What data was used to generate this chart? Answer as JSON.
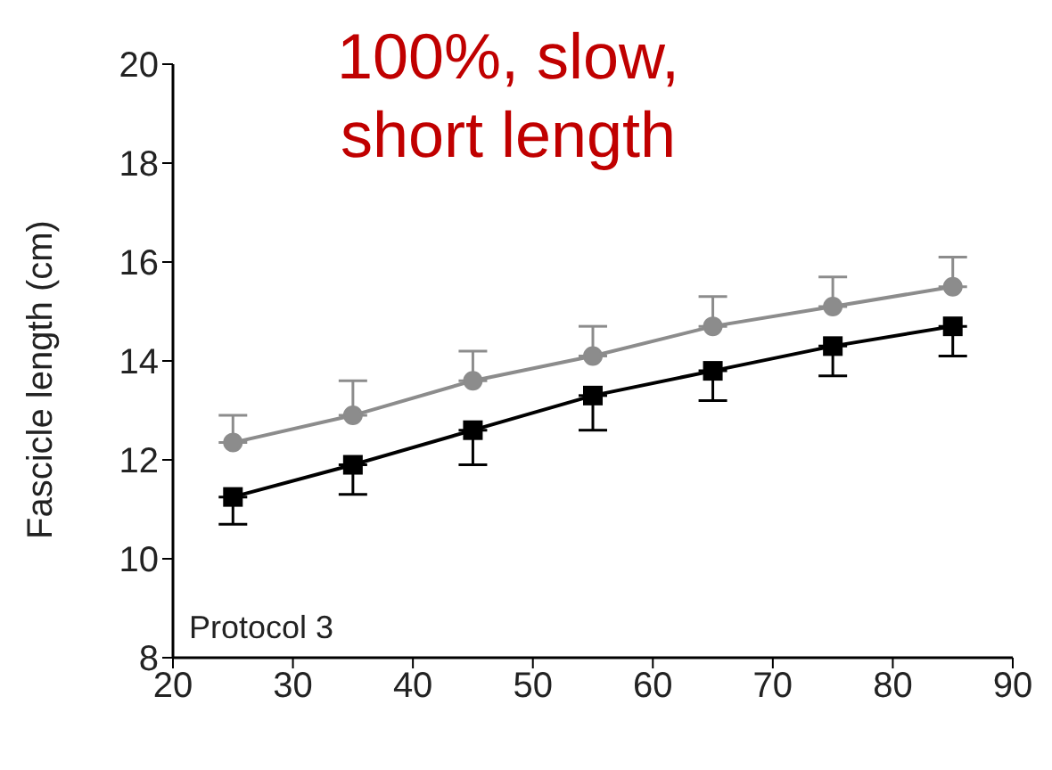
{
  "chart_data": {
    "type": "line",
    "title": "100%, slow, short length",
    "ylabel": "Fascicle length (cm)",
    "annotations": [
      "Protocol 3"
    ],
    "x": [
      25,
      35,
      45,
      55,
      65,
      75,
      85
    ],
    "series": [
      {
        "color": "#8c8c8c",
        "marker": "circle",
        "values": [
          12.35,
          12.9,
          13.6,
          14.1,
          14.7,
          15.1,
          15.5
        ],
        "errors": [
          [
            12.35,
            12.9
          ],
          [
            12.9,
            13.6
          ],
          [
            13.6,
            14.2
          ],
          [
            14.1,
            14.7
          ],
          [
            14.7,
            15.3
          ],
          [
            15.1,
            15.7
          ],
          [
            15.5,
            16.1
          ]
        ]
      },
      {
        "color": "#000000",
        "marker": "square",
        "values": [
          11.25,
          11.9,
          12.6,
          13.3,
          13.8,
          14.3,
          14.7
        ],
        "errors": [
          [
            10.7,
            11.25
          ],
          [
            11.3,
            11.9
          ],
          [
            11.9,
            12.6
          ],
          [
            12.6,
            13.3
          ],
          [
            13.2,
            13.8
          ],
          [
            13.7,
            14.3
          ],
          [
            14.1,
            14.7
          ]
        ]
      }
    ],
    "xlim": [
      20,
      90
    ],
    "xticks": [
      20,
      30,
      40,
      50,
      60,
      70,
      80,
      90
    ],
    "ylim": [
      8,
      20
    ],
    "yticks": [
      8,
      10,
      12,
      14,
      16,
      18,
      20
    ],
    "grid": false,
    "legend": false
  }
}
